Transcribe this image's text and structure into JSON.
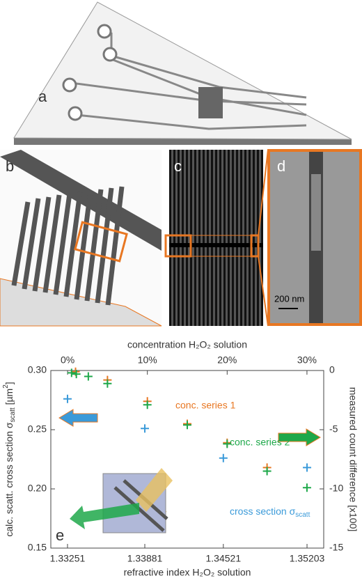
{
  "panel_labels": [
    "a",
    "b",
    "c",
    "d",
    "e"
  ],
  "scale_bar": "200 nm",
  "chart_data": {
    "type": "scatter",
    "x_label": "refractive index H₂O₂ solution",
    "x2_label": "concentration H₂O₂ solution",
    "y_label": [
      "calc. scatt. cross section σ",
      "scatt",
      " [µm",
      "2",
      "]"
    ],
    "y2_label": "measured count difference [x100]",
    "xlim": [
      1.33115,
      1.35339
    ],
    "xticks": [
      1.33251,
      1.33881,
      1.34521,
      1.35203
    ],
    "x2lim": [
      -2.1,
      32.1
    ],
    "x2ticks": [
      {
        "value": 0,
        "label": "0%"
      },
      {
        "value": 10,
        "label": "10%"
      },
      {
        "value": 20,
        "label": "20%"
      },
      {
        "value": 30,
        "label": "30%"
      }
    ],
    "ylim": [
      0.15,
      0.3
    ],
    "yticks": [
      {
        "value": 0.15,
        "label": "0.15"
      },
      {
        "value": 0.2,
        "label": "0.20"
      },
      {
        "value": 0.25,
        "label": "0.25"
      },
      {
        "value": 0.3,
        "label": "0.30"
      }
    ],
    "y2lim": [
      -15,
      0
    ],
    "y2ticks": [
      0,
      -5,
      -10,
      -15
    ],
    "series": [
      {
        "name": "conc. series 1",
        "color": "#e87722",
        "xaxis": "x2",
        "axis": "y2",
        "x": [
          1,
          5,
          10,
          15,
          20,
          25
        ],
        "values": [
          -0.1,
          -0.8,
          -2.6,
          -4.5,
          -6.1,
          -8.2
        ]
      },
      {
        "name": "conc. series 2",
        "color": "#1ea84a",
        "xaxis": "x2",
        "axis": "y2",
        "x": [
          0.5,
          1.1,
          2.6,
          5,
          10,
          15,
          20,
          25,
          30
        ],
        "values": [
          -0.2,
          -0.3,
          -0.5,
          -1.1,
          -2.9,
          -4.6,
          -6.2,
          -8.5,
          -9.9
        ]
      },
      {
        "name": [
          "cross section σ",
          "scatt"
        ],
        "color": "#3a9ad9",
        "xaxis": "x",
        "axis": "y",
        "x": [
          1.33251,
          1.33881,
          1.34521,
          1.35203
        ],
        "values": [
          0.276,
          0.251,
          0.226,
          0.218
        ]
      }
    ]
  }
}
